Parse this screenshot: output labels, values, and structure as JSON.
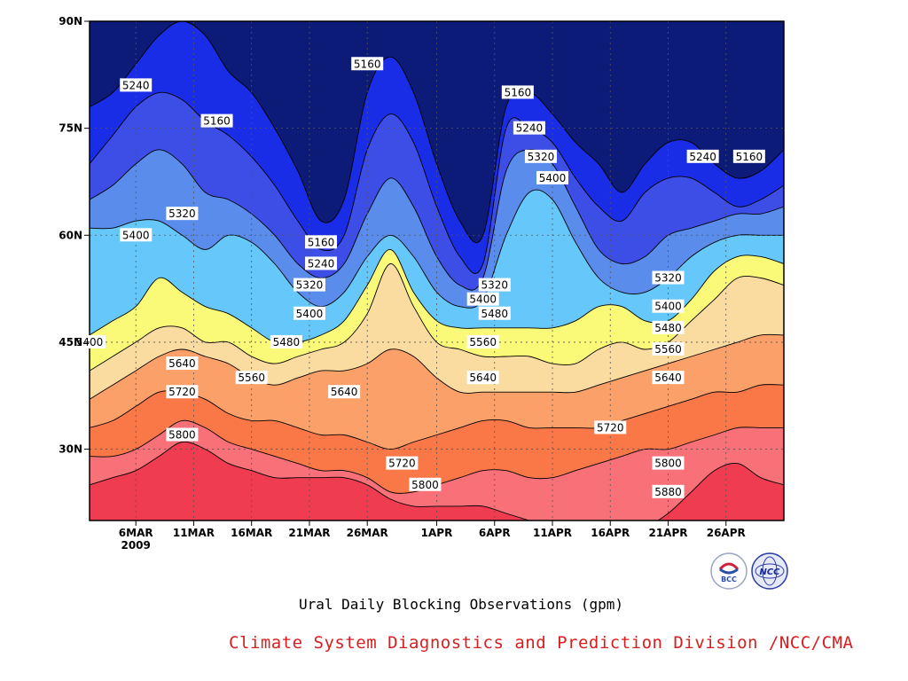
{
  "chart_data": {
    "type": "contour",
    "title": "Ural Daily Blocking Observations (gpm)",
    "x_ticks": [
      {
        "label": "6MAR",
        "sub": "2009",
        "day": 5
      },
      {
        "label": "11MAR",
        "day": 10
      },
      {
        "label": "16MAR",
        "day": 15
      },
      {
        "label": "21MAR",
        "day": 20
      },
      {
        "label": "26MAR",
        "day": 25
      },
      {
        "label": "1APR",
        "day": 31
      },
      {
        "label": "6APR",
        "day": 36
      },
      {
        "label": "11APR",
        "day": 41
      },
      {
        "label": "16APR",
        "day": 46
      },
      {
        "label": "21APR",
        "day": 51
      },
      {
        "label": "26APR",
        "day": 56
      }
    ],
    "y_ticks": [
      {
        "label": "30N",
        "lat": 30
      },
      {
        "label": "45N",
        "lat": 45
      },
      {
        "label": "60N",
        "lat": 60
      },
      {
        "label": "75N",
        "lat": 75
      },
      {
        "label": "90N",
        "lat": 90
      }
    ],
    "xlim_days": [
      1,
      61
    ],
    "ylim_lat": [
      20,
      90
    ],
    "grid": true,
    "contour_levels": [
      5160,
      5240,
      5320,
      5400,
      5480,
      5560,
      5640,
      5720,
      5800,
      5880
    ],
    "level_colors": [
      "#0c1a78",
      "#1a2de6",
      "#3c4ee6",
      "#5a8cec",
      "#66c8fa",
      "#fafa78",
      "#fadca0",
      "#faa068",
      "#fa7848",
      "#f87078",
      "#f03c50"
    ],
    "contours_lat_by_day": {
      "days": [
        1,
        3,
        5,
        7,
        9,
        11,
        13,
        15,
        17,
        19,
        21,
        23,
        25,
        27,
        29,
        31,
        33,
        35,
        37,
        39,
        41,
        43,
        45,
        47,
        49,
        51,
        53,
        55,
        57,
        59,
        61
      ],
      "5160": [
        78,
        80,
        84,
        88,
        90,
        88,
        83,
        80,
        75,
        69,
        62,
        65,
        80,
        85,
        80,
        70,
        62,
        60,
        78,
        80,
        77,
        73,
        70,
        66,
        70,
        73,
        73,
        70,
        68,
        69,
        72
      ],
      "5240": [
        70,
        74,
        78,
        80,
        79,
        76,
        74,
        71,
        67,
        62,
        58,
        60,
        72,
        77,
        73,
        64,
        57,
        56,
        75,
        75,
        73,
        68,
        64,
        62,
        66,
        68,
        68,
        66,
        64,
        65,
        67
      ],
      "5320": [
        65,
        67,
        70,
        72,
        70,
        66,
        65,
        63,
        60,
        56,
        54,
        56,
        63,
        68,
        64,
        57,
        53,
        54,
        69,
        72,
        70,
        64,
        58,
        56,
        57,
        60,
        61,
        62,
        63,
        63,
        64
      ],
      "5400": [
        61,
        61,
        62,
        62,
        60,
        58,
        60,
        59,
        56,
        52,
        50,
        52,
        57,
        60,
        57,
        52,
        50,
        51,
        60,
        66,
        65,
        59,
        54,
        52,
        52,
        54,
        57,
        59,
        60,
        60,
        60
      ],
      "5480": [
        46,
        48,
        50,
        54,
        52,
        50,
        49,
        47,
        45,
        45,
        46,
        48,
        53,
        58,
        52,
        48,
        47,
        47,
        47,
        47,
        47,
        48,
        50,
        50,
        48,
        48,
        51,
        55,
        57,
        57,
        56
      ],
      "5560": [
        41,
        43,
        45,
        47,
        47,
        45,
        45,
        43,
        42,
        43,
        44,
        45,
        49,
        56,
        50,
        45,
        44,
        43,
        43,
        43,
        42,
        42,
        44,
        45,
        44,
        45,
        48,
        51,
        54,
        54,
        53
      ],
      "5640": [
        37,
        39,
        41,
        43,
        44,
        43,
        42,
        40,
        39,
        40,
        41,
        41,
        42,
        44,
        43,
        40,
        38,
        38,
        38,
        38,
        38,
        38,
        39,
        40,
        41,
        42,
        43,
        44,
        45,
        46,
        46
      ],
      "5720": [
        33,
        34,
        36,
        38,
        38,
        37,
        35,
        34,
        34,
        33,
        32,
        32,
        31,
        30,
        31,
        32,
        33,
        34,
        34,
        33,
        33,
        33,
        33,
        34,
        35,
        36,
        37,
        38,
        38,
        39,
        39
      ],
      "5800": [
        29,
        29,
        30,
        32,
        34,
        33,
        31,
        30,
        29,
        28,
        27,
        27,
        26,
        24,
        24,
        25,
        26,
        27,
        27,
        26,
        26,
        27,
        28,
        29,
        30,
        30,
        31,
        32,
        33,
        33,
        33
      ],
      "5880": [
        25,
        26,
        27,
        29,
        31,
        30,
        28,
        27,
        26,
        26,
        26,
        26,
        25,
        23,
        22,
        22,
        22,
        22,
        21,
        20,
        19,
        18,
        18,
        18,
        19,
        21,
        24,
        27,
        28,
        26,
        25
      ]
    },
    "contour_labels": [
      {
        "text": "5240",
        "day": 5,
        "lat": 81
      },
      {
        "text": "5160",
        "day": 12,
        "lat": 76
      },
      {
        "text": "5160",
        "day": 25,
        "lat": 84
      },
      {
        "text": "5160",
        "day": 38,
        "lat": 80
      },
      {
        "text": "5240",
        "day": 39,
        "lat": 75
      },
      {
        "text": "5320",
        "day": 40,
        "lat": 71
      },
      {
        "text": "5400",
        "day": 41,
        "lat": 68
      },
      {
        "text": "5240",
        "day": 54,
        "lat": 71
      },
      {
        "text": "5160",
        "day": 58,
        "lat": 71
      },
      {
        "text": "5320",
        "day": 9,
        "lat": 63
      },
      {
        "text": "5400",
        "day": 5,
        "lat": 60
      },
      {
        "text": "5160",
        "day": 21,
        "lat": 59
      },
      {
        "text": "5240",
        "day": 21,
        "lat": 56
      },
      {
        "text": "5320",
        "day": 20,
        "lat": 53
      },
      {
        "text": "5400",
        "day": 20,
        "lat": 49
      },
      {
        "text": "5480",
        "day": 18,
        "lat": 45
      },
      {
        "text": "5320",
        "day": 36,
        "lat": 53
      },
      {
        "text": "5400",
        "day": 35,
        "lat": 51
      },
      {
        "text": "5480",
        "day": 36,
        "lat": 49
      },
      {
        "text": "5320",
        "day": 51,
        "lat": 54
      },
      {
        "text": "5400",
        "day": 51,
        "lat": 50
      },
      {
        "text": "5480",
        "day": 51,
        "lat": 47
      },
      {
        "text": "5560",
        "day": 51,
        "lat": 44
      },
      {
        "text": "5400",
        "day": 1,
        "lat": 45
      },
      {
        "text": "5640",
        "day": 9,
        "lat": 42
      },
      {
        "text": "5560",
        "day": 15,
        "lat": 40
      },
      {
        "text": "5560",
        "day": 35,
        "lat": 45
      },
      {
        "text": "5640",
        "day": 35,
        "lat": 40
      },
      {
        "text": "5640",
        "day": 23,
        "lat": 38
      },
      {
        "text": "5720",
        "day": 9,
        "lat": 38
      },
      {
        "text": "5640",
        "day": 51,
        "lat": 40
      },
      {
        "text": "5720",
        "day": 46,
        "lat": 33
      },
      {
        "text": "5800",
        "day": 9,
        "lat": 32
      },
      {
        "text": "5720",
        "day": 28,
        "lat": 28
      },
      {
        "text": "5800",
        "day": 30,
        "lat": 25
      },
      {
        "text": "5800",
        "day": 51,
        "lat": 28
      },
      {
        "text": "5880",
        "day": 51,
        "lat": 24
      }
    ]
  },
  "caption": "Ural Daily Blocking Observations (gpm)",
  "credit": "Climate System Diagnostics and Prediction Division /NCC/CMA",
  "logos": {
    "bcc": {
      "text": "BCC"
    },
    "ncc": {
      "text": "NCC"
    }
  },
  "colors": {
    "credit": "#d81e1e",
    "background": "#ffffff"
  }
}
